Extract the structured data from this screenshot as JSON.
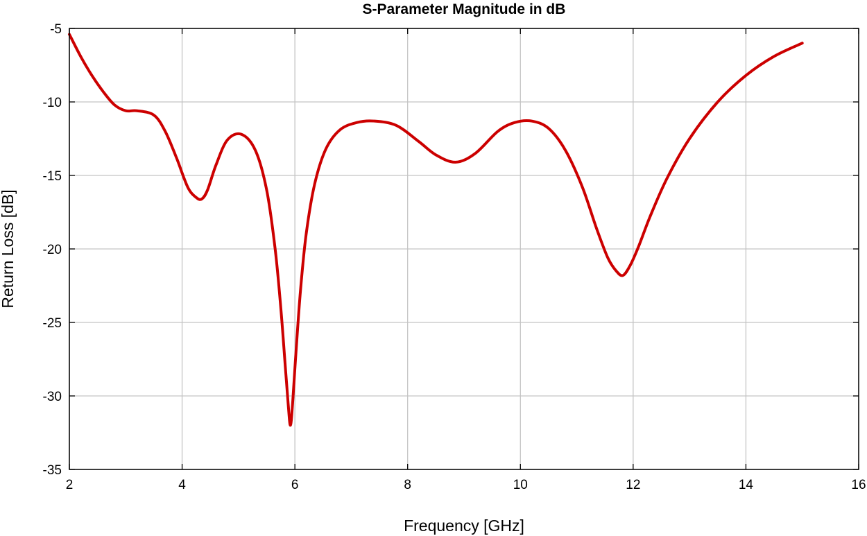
{
  "chart_data": {
    "type": "line",
    "title": "S-Parameter Magnitude in dB",
    "xlabel": "Frequency [GHz]",
    "ylabel": "Return Loss [dB]",
    "xlim": [
      2,
      16
    ],
    "ylim": [
      -35,
      -5
    ],
    "xticks": [
      2,
      4,
      6,
      8,
      10,
      12,
      14,
      16
    ],
    "yticks": [
      -5,
      -10,
      -15,
      -20,
      -25,
      -30,
      -35
    ],
    "grid": true,
    "legend": "none",
    "series": [
      {
        "color": "#cc0000",
        "x": [
          2.0,
          2.2,
          2.4,
          2.6,
          2.8,
          3.0,
          3.2,
          3.5,
          3.7,
          3.9,
          4.1,
          4.25,
          4.35,
          4.45,
          4.6,
          4.8,
          5.05,
          5.3,
          5.5,
          5.65,
          5.75,
          5.83,
          5.88,
          5.92,
          5.96,
          6.02,
          6.1,
          6.2,
          6.35,
          6.55,
          6.8,
          7.1,
          7.4,
          7.8,
          8.2,
          8.5,
          8.85,
          9.2,
          9.6,
          9.9,
          10.2,
          10.5,
          10.8,
          11.1,
          11.35,
          11.55,
          11.7,
          11.82,
          11.95,
          12.1,
          12.3,
          12.6,
          13.0,
          13.5,
          14.0,
          14.5,
          15.0
        ],
        "y": [
          -5.4,
          -6.9,
          -8.2,
          -9.3,
          -10.2,
          -10.6,
          -10.6,
          -10.9,
          -12.0,
          -13.8,
          -15.8,
          -16.5,
          -16.6,
          -16.0,
          -14.3,
          -12.6,
          -12.2,
          -13.3,
          -16.0,
          -20.0,
          -24.0,
          -28.0,
          -30.5,
          -32.0,
          -30.5,
          -27.0,
          -22.8,
          -19.0,
          -15.6,
          -13.2,
          -11.9,
          -11.4,
          -11.3,
          -11.6,
          -12.7,
          -13.6,
          -14.1,
          -13.5,
          -12.0,
          -11.4,
          -11.3,
          -11.8,
          -13.3,
          -15.8,
          -18.6,
          -20.6,
          -21.5,
          -21.8,
          -21.1,
          -19.8,
          -17.8,
          -15.2,
          -12.5,
          -10.0,
          -8.2,
          -6.9,
          -6.0
        ]
      }
    ]
  }
}
